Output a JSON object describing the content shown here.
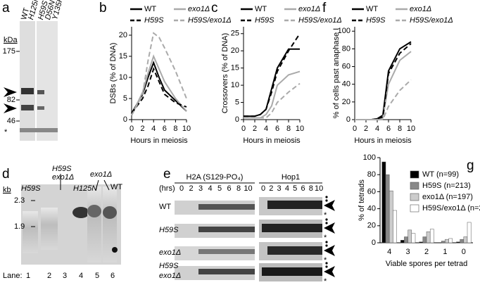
{
  "chart_data": [
    {
      "type": "line",
      "panel_label": "b",
      "xlabel": "Hours in meiosis",
      "ylabel": "DSBs (% of DNA)",
      "x": [
        0,
        2,
        3,
        4,
        5,
        6,
        8,
        10
      ],
      "xlim": [
        0,
        10
      ],
      "xticks": [
        0,
        2,
        4,
        6,
        8,
        10
      ],
      "ylim": [
        0,
        22
      ],
      "yticks": [
        0,
        5,
        10,
        15,
        20
      ],
      "series": [
        {
          "name": "WT",
          "color": "#000000",
          "dashed": false,
          "values": [
            1.5,
            6,
            10,
            13.5,
            10,
            7,
            4.5,
            2
          ]
        },
        {
          "name": "exo1Δ",
          "color": "#aaaaaa",
          "dashed": false,
          "values": [
            1,
            6.5,
            11,
            15,
            12,
            9,
            5,
            2
          ]
        },
        {
          "name": "H59S",
          "color": "#000000",
          "dashed": true,
          "values": [
            1.5,
            5,
            8,
            12,
            9,
            6,
            4,
            3
          ]
        },
        {
          "name": "H59S/exo1Δ",
          "color": "#aaaaaa",
          "dashed": true,
          "values": [
            1,
            6,
            14,
            20.5,
            19.5,
            17,
            11.5,
            5
          ]
        }
      ]
    },
    {
      "type": "line",
      "panel_label": "c",
      "xlabel": "Hours in meiosis",
      "ylabel": "Crossovers (% of DNA)",
      "x": [
        0,
        2,
        3,
        4,
        5,
        6,
        8,
        10
      ],
      "xlim": [
        0,
        10
      ],
      "xticks": [
        0,
        2,
        4,
        6,
        8,
        10
      ],
      "ylim": [
        0,
        27
      ],
      "yticks": [
        0,
        5,
        10,
        15,
        20,
        25
      ],
      "series": [
        {
          "name": "WT",
          "color": "#000000",
          "dashed": false,
          "values": [
            1,
            1,
            1.5,
            3,
            9,
            15,
            20.5,
            20.5
          ]
        },
        {
          "name": "exo1Δ",
          "color": "#aaaaaa",
          "dashed": false,
          "values": [
            0.5,
            0.5,
            0.5,
            1.5,
            4,
            10,
            13,
            14
          ]
        },
        {
          "name": "H59S",
          "color": "#000000",
          "dashed": true,
          "values": [
            1,
            1,
            1.5,
            3,
            8,
            14,
            20,
            25
          ]
        },
        {
          "name": "H59S/exo1Δ",
          "color": "#aaaaaa",
          "dashed": true,
          "values": [
            0.5,
            0.5,
            0.5,
            0.5,
            2,
            5,
            8,
            10.5
          ]
        }
      ]
    },
    {
      "type": "line",
      "panel_label": "f",
      "xlabel": "Hours in meiosis",
      "ylabel": "% of cells past anaphase I",
      "x": [
        0,
        2,
        3,
        4,
        5,
        6,
        8,
        10
      ],
      "xlim": [
        0,
        10
      ],
      "xticks": [
        0,
        2,
        4,
        6,
        8,
        10
      ],
      "ylim": [
        0,
        105
      ],
      "yticks": [
        0,
        20,
        40,
        60,
        80,
        100
      ],
      "series": [
        {
          "name": "WT",
          "color": "#000000",
          "dashed": false,
          "values": [
            0,
            0,
            0,
            1,
            5,
            55,
            80,
            88
          ]
        },
        {
          "name": "exo1Δ",
          "color": "#aaaaaa",
          "dashed": false,
          "values": [
            0,
            0,
            0,
            0,
            2,
            40,
            67,
            77
          ]
        },
        {
          "name": "H59S",
          "color": "#000000",
          "dashed": true,
          "values": [
            0,
            0,
            0,
            1,
            3,
            52,
            75,
            86
          ]
        },
        {
          "name": "H59S/exo1Δ",
          "color": "#aaaaaa",
          "dashed": true,
          "values": [
            0,
            0,
            0,
            0,
            0,
            15,
            33,
            45
          ]
        }
      ]
    },
    {
      "type": "bar",
      "panel_label": "g",
      "xlabel": "Viable spores per tetrad",
      "ylabel": "% of tetrads",
      "categories": [
        "4",
        "3",
        "2",
        "1",
        "0"
      ],
      "ylim": [
        0,
        100
      ],
      "yticks": [
        0,
        20,
        40,
        60,
        80,
        100
      ],
      "series": [
        {
          "name": "WT (n=99)",
          "color": "#000000",
          "values": [
            95,
            3,
            1,
            0,
            1
          ]
        },
        {
          "name": "H59S (n=213)",
          "color": "#888888",
          "values": [
            80,
            7,
            7,
            2,
            4
          ]
        },
        {
          "name": "exo1Δ (n=197)",
          "color": "#cccccc",
          "values": [
            61,
            15,
            13,
            4,
            7
          ]
        },
        {
          "name": "H59S/exo1Δ (n=254)",
          "color": "#ffffff",
          "values": [
            38,
            11,
            16,
            5,
            24
          ]
        }
      ]
    }
  ],
  "panels": {
    "a": {
      "label": "a",
      "unit": "kDa",
      "markers": [
        "175",
        "82",
        "46"
      ],
      "lanes": [
        "WT",
        "H125N",
        "H59S",
        "D56N",
        "Y135F"
      ],
      "asterisk": "*"
    },
    "d": {
      "label": "d",
      "unit": "kb",
      "markers": [
        "2.3",
        "1.9"
      ],
      "lane_labels": [
        "H59S",
        "H59S",
        "exo1Δ",
        "H125N",
        "exo1Δ",
        "WT"
      ],
      "lane_prefix": "Lane:",
      "lane_numbers": [
        "1",
        "2",
        "3",
        "4",
        "5",
        "6"
      ]
    },
    "e": {
      "label": "e",
      "groups": [
        "H2A (S129-PO₄)",
        "Hop1"
      ],
      "hours_label": "(hrs)",
      "hours": [
        "0",
        "2",
        "3",
        "4",
        "5",
        "6",
        "8",
        "10"
      ],
      "rows": [
        [
          "WT"
        ],
        [
          "H59S"
        ],
        [
          "exo1Δ"
        ],
        [
          "H59S",
          "exo1Δ"
        ]
      ],
      "asterisk": "*"
    }
  }
}
